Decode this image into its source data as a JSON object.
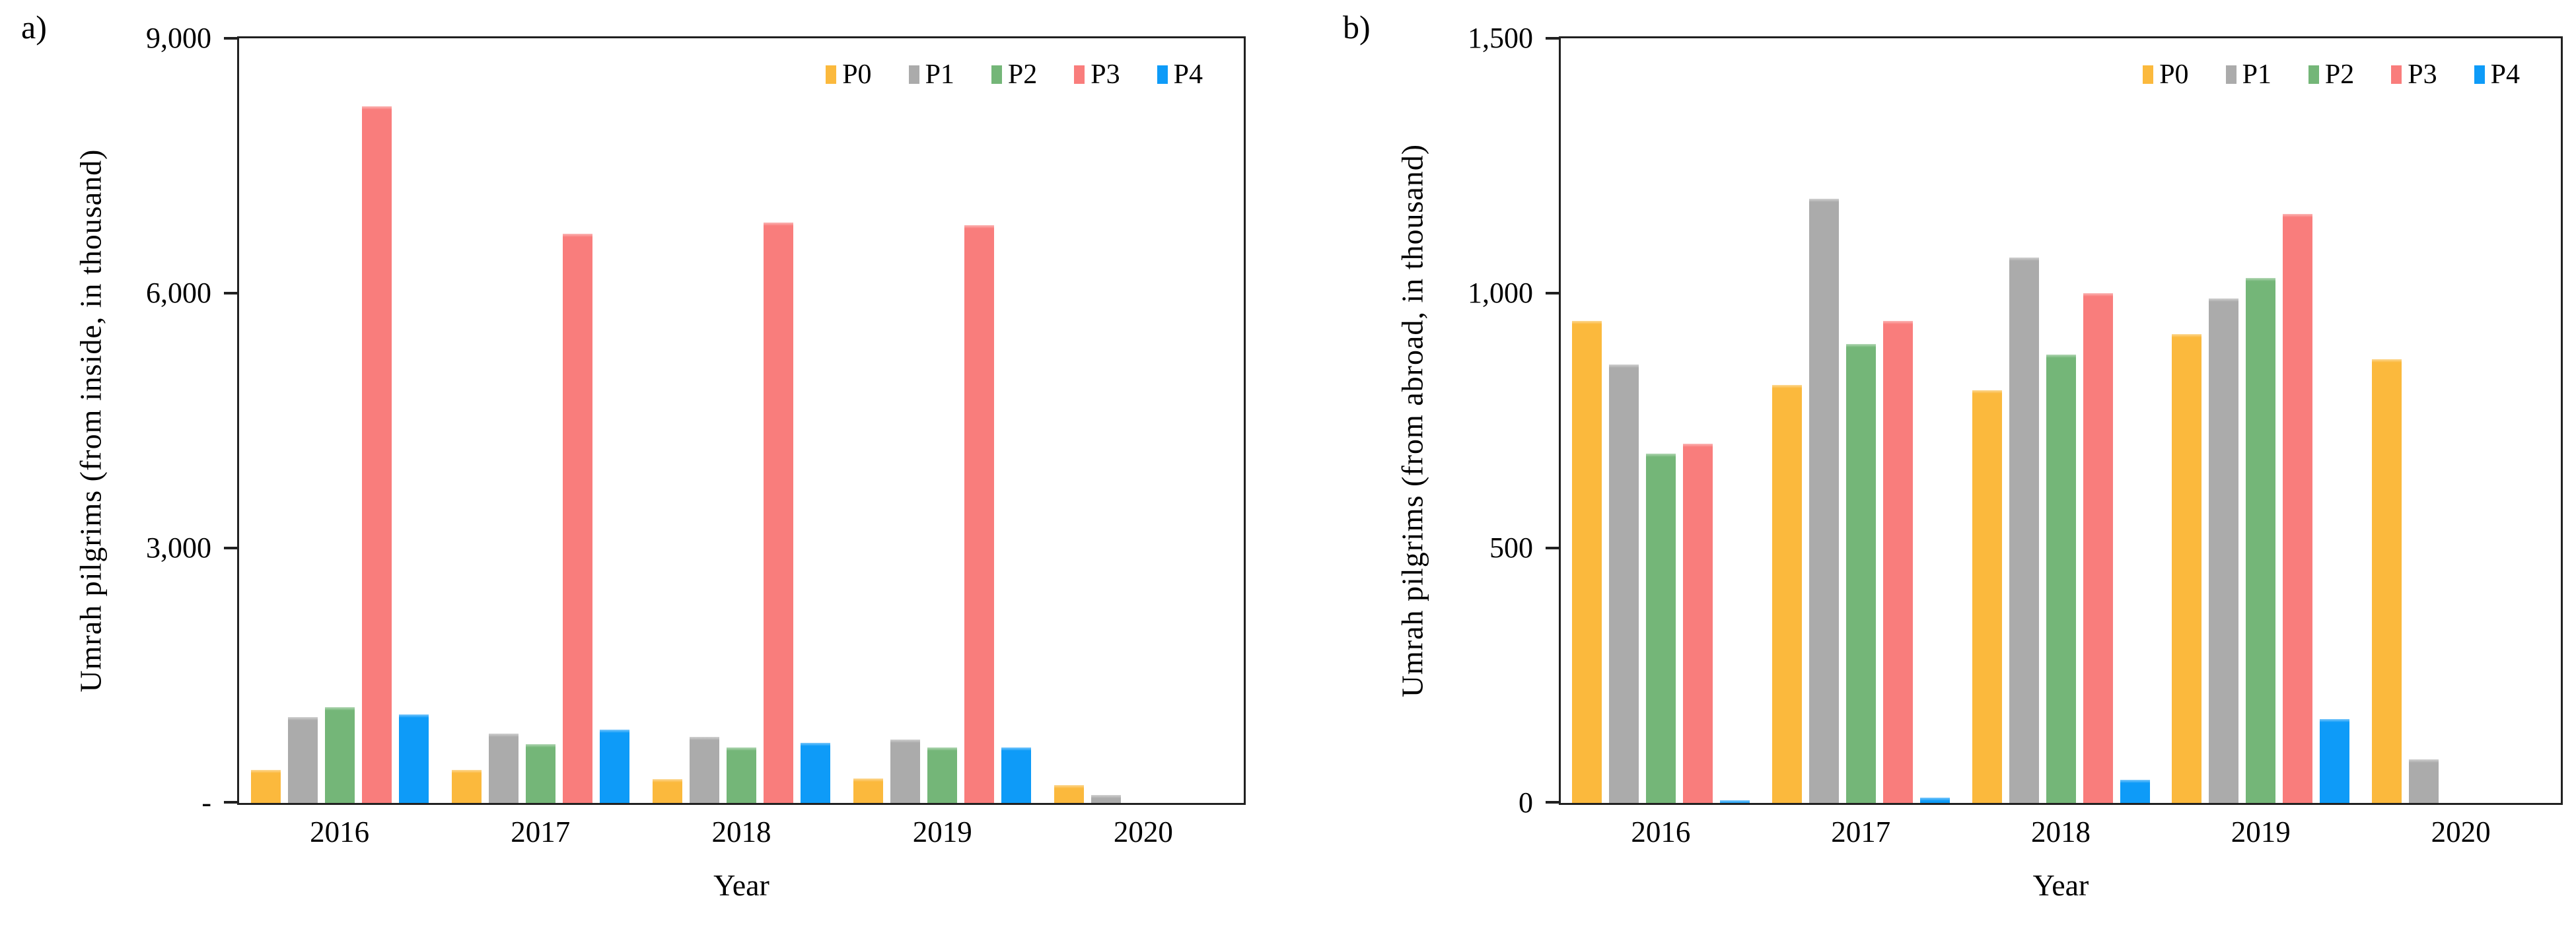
{
  "page": {
    "background": "#ffffff"
  },
  "series_colors": {
    "P0": "#FBB93D",
    "P1": "#ABABAB",
    "P2": "#74B678",
    "P3": "#F97D7C",
    "P4": "#0E9BF8"
  },
  "chart_data": [
    {
      "id": "a",
      "panel_label": "a)",
      "type": "bar",
      "title": "",
      "xlabel": "Year",
      "ylabel": "Umrah pilgrims  (from inside,  in thousand)",
      "categories": [
        "2016",
        "2017",
        "2018",
        "2019",
        "2020"
      ],
      "series": [
        {
          "name": "P0",
          "color": "#FBB93D",
          "values": [
            390,
            390,
            280,
            290,
            210
          ]
        },
        {
          "name": "P1",
          "color": "#ABABAB",
          "values": [
            1010,
            820,
            780,
            750,
            90
          ]
        },
        {
          "name": "P2",
          "color": "#74B678",
          "values": [
            1130,
            690,
            650,
            650,
            0
          ]
        },
        {
          "name": "P3",
          "color": "#F97D7C",
          "values": [
            8200,
            6700,
            6830,
            6800,
            0
          ]
        },
        {
          "name": "P4",
          "color": "#0E9BF8",
          "values": [
            1040,
            860,
            710,
            650,
            0
          ]
        }
      ],
      "ylim": [
        0,
        9000
      ],
      "yticks": [
        {
          "label": "9,000",
          "value": 9000
        },
        {
          "label": "6,000",
          "value": 6000
        },
        {
          "label": "3,000",
          "value": 3000
        },
        {
          "label": "-",
          "value": 0
        }
      ],
      "legend": [
        "P0",
        "P1",
        "P2",
        "P3",
        "P4"
      ],
      "legend_position": "top-right",
      "grid": false
    },
    {
      "id": "b",
      "panel_label": "b)",
      "type": "bar",
      "title": "",
      "xlabel": "Year",
      "ylabel": "Umrah pilgrims  (from abroad,  in thousand)",
      "categories": [
        "2016",
        "2017",
        "2018",
        "2019",
        "2020"
      ],
      "series": [
        {
          "name": "P0",
          "color": "#FBB93D",
          "values": [
            945,
            820,
            810,
            920,
            870
          ]
        },
        {
          "name": "P1",
          "color": "#ABABAB",
          "values": [
            860,
            1185,
            1070,
            990,
            85
          ]
        },
        {
          "name": "P2",
          "color": "#74B678",
          "values": [
            685,
            900,
            880,
            1030,
            0
          ]
        },
        {
          "name": "P3",
          "color": "#F97D7C",
          "values": [
            705,
            945,
            1000,
            1155,
            0
          ]
        },
        {
          "name": "P4",
          "color": "#0E9BF8",
          "values": [
            5,
            10,
            45,
            165,
            0
          ]
        }
      ],
      "ylim": [
        0,
        1500
      ],
      "yticks": [
        {
          "label": "1,500",
          "value": 1500
        },
        {
          "label": "1,000",
          "value": 1000
        },
        {
          "label": "500",
          "value": 500
        },
        {
          "label": "0",
          "value": 0
        }
      ],
      "legend": [
        "P0",
        "P1",
        "P2",
        "P3",
        "P4"
      ],
      "legend_position": "top-right",
      "grid": false
    }
  ]
}
